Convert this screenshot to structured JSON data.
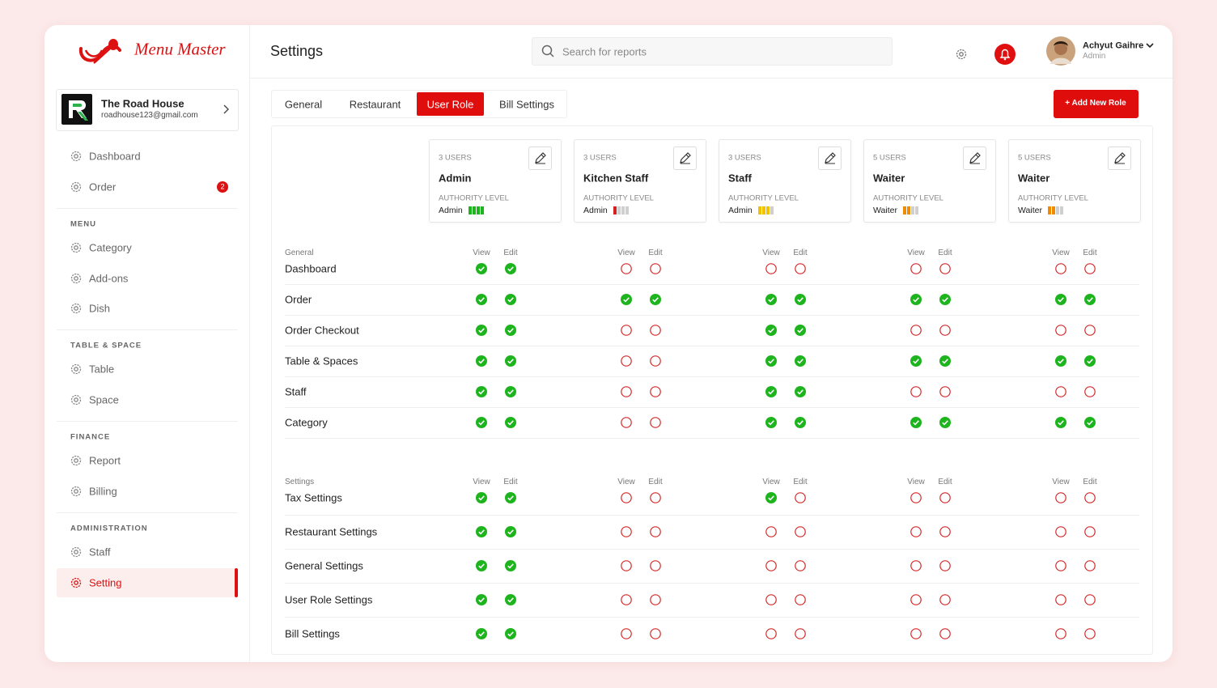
{
  "brand": "Menu Master",
  "restaurant": {
    "name": "The Road House",
    "email": "roadhouse123@gmail.com"
  },
  "nav": {
    "top": [
      {
        "label": "Dashboard"
      },
      {
        "label": "Order",
        "badge": "2"
      }
    ],
    "sections": [
      {
        "title": "MENU",
        "items": [
          {
            "label": "Category"
          },
          {
            "label": "Add-ons"
          },
          {
            "label": "Dish"
          }
        ]
      },
      {
        "title": "TABLE & SPACE",
        "items": [
          {
            "label": "Table"
          },
          {
            "label": "Space"
          }
        ]
      },
      {
        "title": "FINANCE",
        "items": [
          {
            "label": "Report"
          },
          {
            "label": "Billing"
          }
        ]
      },
      {
        "title": "ADMINISTRATION",
        "items": [
          {
            "label": "Staff"
          },
          {
            "label": "Setting",
            "active": true
          }
        ]
      }
    ]
  },
  "header": {
    "title": "Settings",
    "search_placeholder": "Search for reports",
    "user": {
      "name": "Achyut Gaihre",
      "role": "Admin"
    }
  },
  "tabs": [
    {
      "label": "General"
    },
    {
      "label": "Restaurant"
    },
    {
      "label": "User Role",
      "active": true
    },
    {
      "label": "Bill Settings"
    }
  ],
  "add_button": "+ Add New Role",
  "authority_label": "AUTHORITY LEVEL",
  "bars_max": 4,
  "columns": [
    "View",
    "Edit"
  ],
  "roles": [
    {
      "users": "3 USERS",
      "name": "Admin",
      "level": "Admin",
      "bars": 4,
      "bar_color": "#1db41d"
    },
    {
      "users": "3 USERS",
      "name": "Kitchen Staff",
      "level": "Admin",
      "bars": 1,
      "bar_color": "#d42020"
    },
    {
      "users": "3 USERS",
      "name": "Staff",
      "level": "Admin",
      "bars": 3,
      "bar_color": "#f2c200"
    },
    {
      "users": "5 USERS",
      "name": "Waiter",
      "level": "Waiter",
      "bars": 2,
      "bar_color": "#f08a00"
    },
    {
      "users": "5 USERS",
      "name": "Waiter",
      "level": "Waiter",
      "bars": 2,
      "bar_color": "#f08a00"
    }
  ],
  "groups": [
    {
      "title": "General",
      "rows": [
        {
          "label": "Dashboard",
          "perms": [
            [
              true,
              true
            ],
            [
              false,
              false
            ],
            [
              false,
              false
            ],
            [
              false,
              false
            ],
            [
              false,
              false
            ]
          ]
        },
        {
          "label": "Order",
          "perms": [
            [
              true,
              true
            ],
            [
              true,
              true
            ],
            [
              true,
              true
            ],
            [
              true,
              true
            ],
            [
              true,
              true
            ]
          ]
        },
        {
          "label": "Order Checkout",
          "perms": [
            [
              true,
              true
            ],
            [
              false,
              false
            ],
            [
              true,
              true
            ],
            [
              false,
              false
            ],
            [
              false,
              false
            ]
          ]
        },
        {
          "label": "Table & Spaces",
          "perms": [
            [
              true,
              true
            ],
            [
              false,
              false
            ],
            [
              true,
              true
            ],
            [
              true,
              true
            ],
            [
              true,
              true
            ]
          ]
        },
        {
          "label": "Staff",
          "perms": [
            [
              true,
              true
            ],
            [
              false,
              false
            ],
            [
              true,
              true
            ],
            [
              false,
              false
            ],
            [
              false,
              false
            ]
          ]
        },
        {
          "label": "Category",
          "perms": [
            [
              true,
              true
            ],
            [
              false,
              false
            ],
            [
              true,
              true
            ],
            [
              true,
              true
            ],
            [
              true,
              true
            ]
          ]
        }
      ]
    },
    {
      "title": "Settings",
      "rows": [
        {
          "label": "Tax Settings",
          "perms": [
            [
              true,
              true
            ],
            [
              false,
              false
            ],
            [
              true,
              false
            ],
            [
              false,
              false
            ],
            [
              false,
              false
            ]
          ]
        },
        {
          "label": "Restaurant Settings",
          "perms": [
            [
              true,
              true
            ],
            [
              false,
              false
            ],
            [
              false,
              false
            ],
            [
              false,
              false
            ],
            [
              false,
              false
            ]
          ]
        },
        {
          "label": "General Settings",
          "perms": [
            [
              true,
              true
            ],
            [
              false,
              false
            ],
            [
              false,
              false
            ],
            [
              false,
              false
            ],
            [
              false,
              false
            ]
          ]
        },
        {
          "label": "User Role Settings",
          "perms": [
            [
              true,
              true
            ],
            [
              false,
              false
            ],
            [
              false,
              false
            ],
            [
              false,
              false
            ],
            [
              false,
              false
            ]
          ]
        },
        {
          "label": "Bill Settings",
          "perms": [
            [
              true,
              true
            ],
            [
              false,
              false
            ],
            [
              false,
              false
            ],
            [
              false,
              false
            ],
            [
              false,
              false
            ]
          ]
        }
      ]
    }
  ]
}
